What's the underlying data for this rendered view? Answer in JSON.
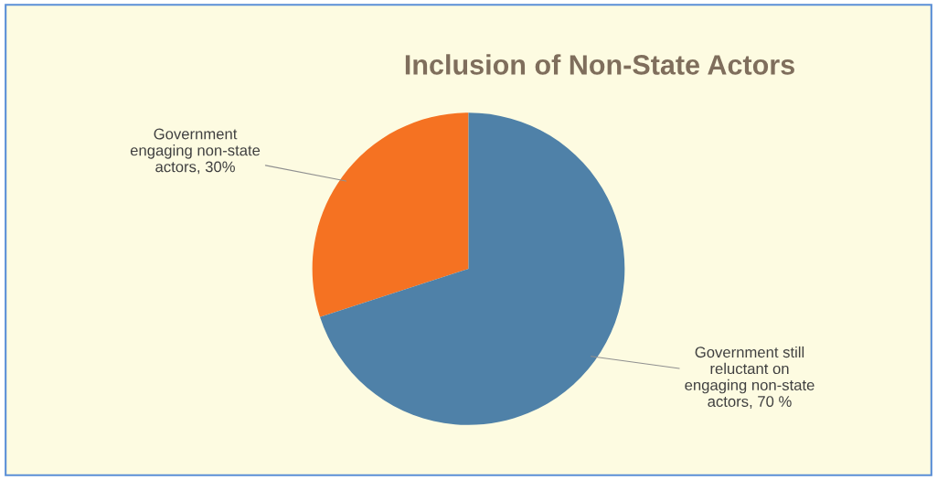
{
  "chart_data": {
    "type": "pie",
    "title": "Inclusion of Non-State Actors",
    "categories": [
      "Government\nengaging non-state\nactors",
      "Government still\nreluctant on\nengaging non-state\nactors"
    ],
    "values": [
      30,
      70
    ],
    "value_labels": [
      "30%",
      "70 %"
    ],
    "colors": [
      "#f57222",
      "#4f81a8"
    ],
    "legend": false
  }
}
